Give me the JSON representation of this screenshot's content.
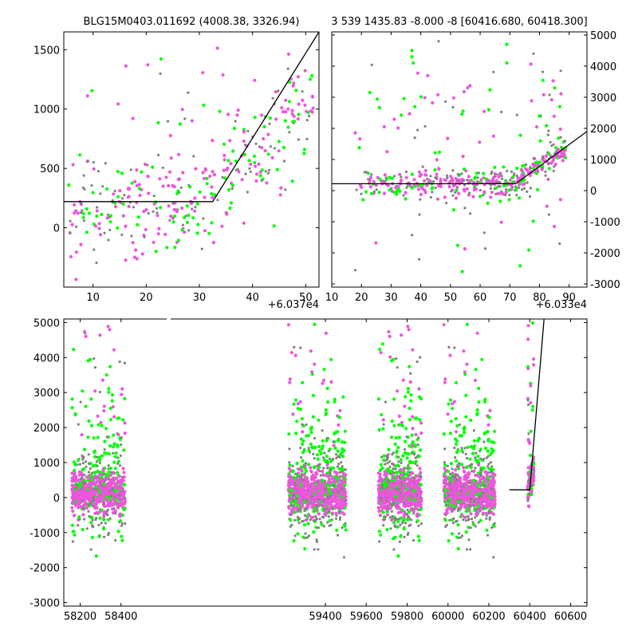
{
  "chart_data": [
    {
      "type": "scatter",
      "title": "BLG15M0403.011692 (4008.38, 3326.94)",
      "x_offset_label": "+6.037e4",
      "xlim": [
        4.5,
        52.5
      ],
      "ylim": [
        -500,
        1650
      ],
      "xticks": [
        10,
        20,
        30,
        40,
        50
      ],
      "yticks": [
        0,
        500,
        1000,
        1500
      ],
      "colors": {
        "grey": "#808080",
        "green": "#00ff00",
        "pink": "#ee55dd"
      },
      "fit_line": [
        [
          4.5,
          220
        ],
        [
          32.5,
          220
        ],
        [
          52.5,
          1650
        ]
      ]
    },
    {
      "type": "scatter",
      "title": "3 539 1435.83 -8.000 -8 [60416.680, 60418.300]",
      "x_offset_label": "+6.033e4",
      "xlim": [
        10,
        96
      ],
      "ylim": [
        -3100,
        5100
      ],
      "xticks": [
        10,
        20,
        30,
        40,
        50,
        60,
        70,
        80,
        90
      ],
      "yticks": [
        -3000,
        -2000,
        -1000,
        0,
        1000,
        2000,
        3000,
        4000,
        5000
      ],
      "y_axis_side": "right",
      "colors": {
        "grey": "#808080",
        "green": "#00ff00",
        "pink": "#ee55dd"
      },
      "fit_line": [
        [
          10,
          220
        ],
        [
          72,
          220
        ],
        [
          96,
          1900
        ]
      ]
    },
    {
      "type": "scatter",
      "title": "",
      "xlim": [
        58120,
        60680
      ],
      "ylim": [
        -3100,
        5100
      ],
      "xticks": [
        58200,
        58400,
        59400,
        59600,
        59800,
        60000,
        60200,
        60400,
        60600
      ],
      "yticks": [
        -3000,
        -2000,
        -1000,
        0,
        1000,
        2000,
        3000,
        4000,
        5000
      ],
      "seasons": [
        [
          58160,
          58420
        ],
        [
          59220,
          59500
        ],
        [
          59660,
          59870
        ],
        [
          59980,
          60230
        ],
        [
          60390,
          60420
        ]
      ],
      "colors": {
        "grey": "#808080",
        "green": "#00ff00",
        "pink": "#ee55dd"
      },
      "fit_line": [
        [
          60300,
          220
        ],
        [
          60400,
          220
        ],
        [
          60470,
          5100
        ]
      ]
    }
  ]
}
